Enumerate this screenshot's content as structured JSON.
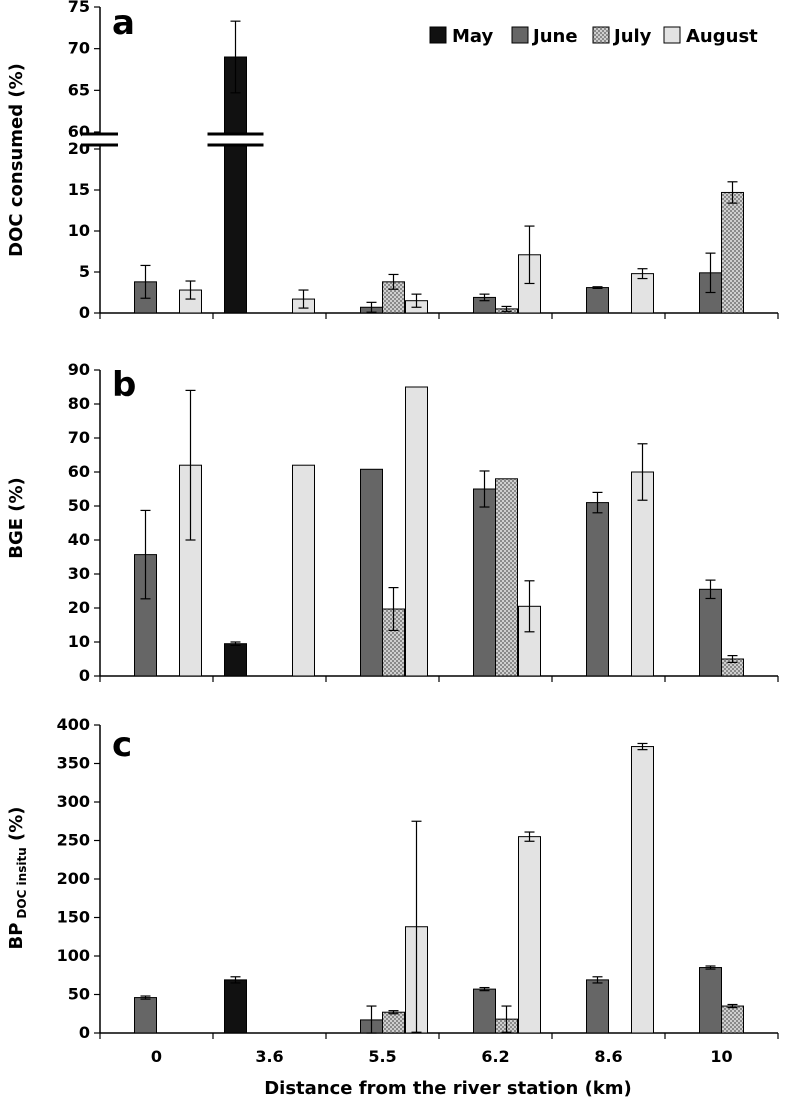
{
  "colors": {
    "May": "#111111",
    "June": "#666666",
    "July": "#bdbdbd",
    "August": "#e3e3e3"
  },
  "legend": [
    "May",
    "June",
    "July",
    "August"
  ],
  "xlabel": "Distance from the river station (km)",
  "chart_data": [
    {
      "type": "bar",
      "panel": "a",
      "ylabel": "DOC consumed (%)",
      "categories": [
        "0",
        "3.6",
        "5.5",
        "6.2",
        "8.6",
        "10"
      ],
      "ylim": [
        0,
        75
      ],
      "axis_break": [
        20,
        60
      ],
      "yticks_lower": [
        0,
        5,
        10,
        15,
        20
      ],
      "yticks_upper": [
        60,
        65,
        70,
        75
      ],
      "series": [
        {
          "name": "May",
          "values": [
            null,
            69,
            null,
            null,
            null,
            null
          ],
          "errors": [
            null,
            4.3,
            null,
            null,
            null,
            null
          ]
        },
        {
          "name": "June",
          "values": [
            3.8,
            null,
            0.7,
            1.9,
            3.1,
            4.9
          ],
          "errors": [
            2.0,
            null,
            0.6,
            0.4,
            0.1,
            2.4
          ]
        },
        {
          "name": "July",
          "values": [
            null,
            null,
            3.8,
            0.5,
            null,
            14.7
          ],
          "errors": [
            null,
            null,
            0.9,
            0.3,
            null,
            1.3
          ]
        },
        {
          "name": "August",
          "values": [
            2.8,
            1.7,
            1.5,
            7.1,
            4.8,
            null
          ],
          "errors": [
            1.1,
            1.1,
            0.8,
            3.5,
            0.6,
            null
          ]
        }
      ]
    },
    {
      "type": "bar",
      "panel": "b",
      "ylabel": "BGE (%)",
      "categories": [
        "0",
        "3.6",
        "5.5",
        "6.2",
        "8.6",
        "10"
      ],
      "ylim": [
        0,
        90
      ],
      "yticks": [
        0,
        10,
        20,
        30,
        40,
        50,
        60,
        70,
        80,
        90
      ],
      "series": [
        {
          "name": "May",
          "values": [
            null,
            9.5,
            null,
            null,
            null,
            null
          ],
          "errors": [
            null,
            0.5,
            null,
            null,
            null,
            null
          ]
        },
        {
          "name": "June",
          "values": [
            35.7,
            null,
            60.8,
            55,
            51,
            25.5
          ],
          "errors": [
            13,
            null,
            null,
            5.3,
            3,
            2.7
          ]
        },
        {
          "name": "July",
          "values": [
            null,
            null,
            19.7,
            58,
            null,
            5
          ],
          "errors": [
            null,
            null,
            6.3,
            null,
            null,
            1
          ]
        },
        {
          "name": "August",
          "values": [
            62,
            62,
            85,
            20.5,
            60,
            null
          ],
          "errors": [
            22,
            null,
            null,
            7.5,
            8.3,
            null
          ]
        }
      ]
    },
    {
      "type": "bar",
      "panel": "c",
      "ylabel_main": "BP",
      "ylabel_sub": "DOC insitu",
      "ylabel_tail": " (%)",
      "categories": [
        "0",
        "3.6",
        "5.5",
        "6.2",
        "8.6",
        "10"
      ],
      "ylim": [
        0,
        400
      ],
      "yticks": [
        0,
        50,
        100,
        150,
        200,
        250,
        300,
        350,
        400
      ],
      "series": [
        {
          "name": "May",
          "values": [
            null,
            69,
            null,
            null,
            null,
            null
          ],
          "errors": [
            null,
            4,
            null,
            null,
            null,
            null
          ]
        },
        {
          "name": "June",
          "values": [
            46,
            null,
            17,
            57,
            69,
            85
          ],
          "errors": [
            2,
            null,
            18,
            2,
            4,
            2
          ]
        },
        {
          "name": "July",
          "values": [
            null,
            null,
            27,
            18,
            null,
            35
          ],
          "errors": [
            null,
            null,
            2,
            17,
            null,
            2
          ]
        },
        {
          "name": "August",
          "values": [
            null,
            null,
            138,
            255,
            372,
            null
          ],
          "errors": [
            null,
            null,
            137,
            6,
            4,
            null
          ]
        }
      ]
    }
  ]
}
